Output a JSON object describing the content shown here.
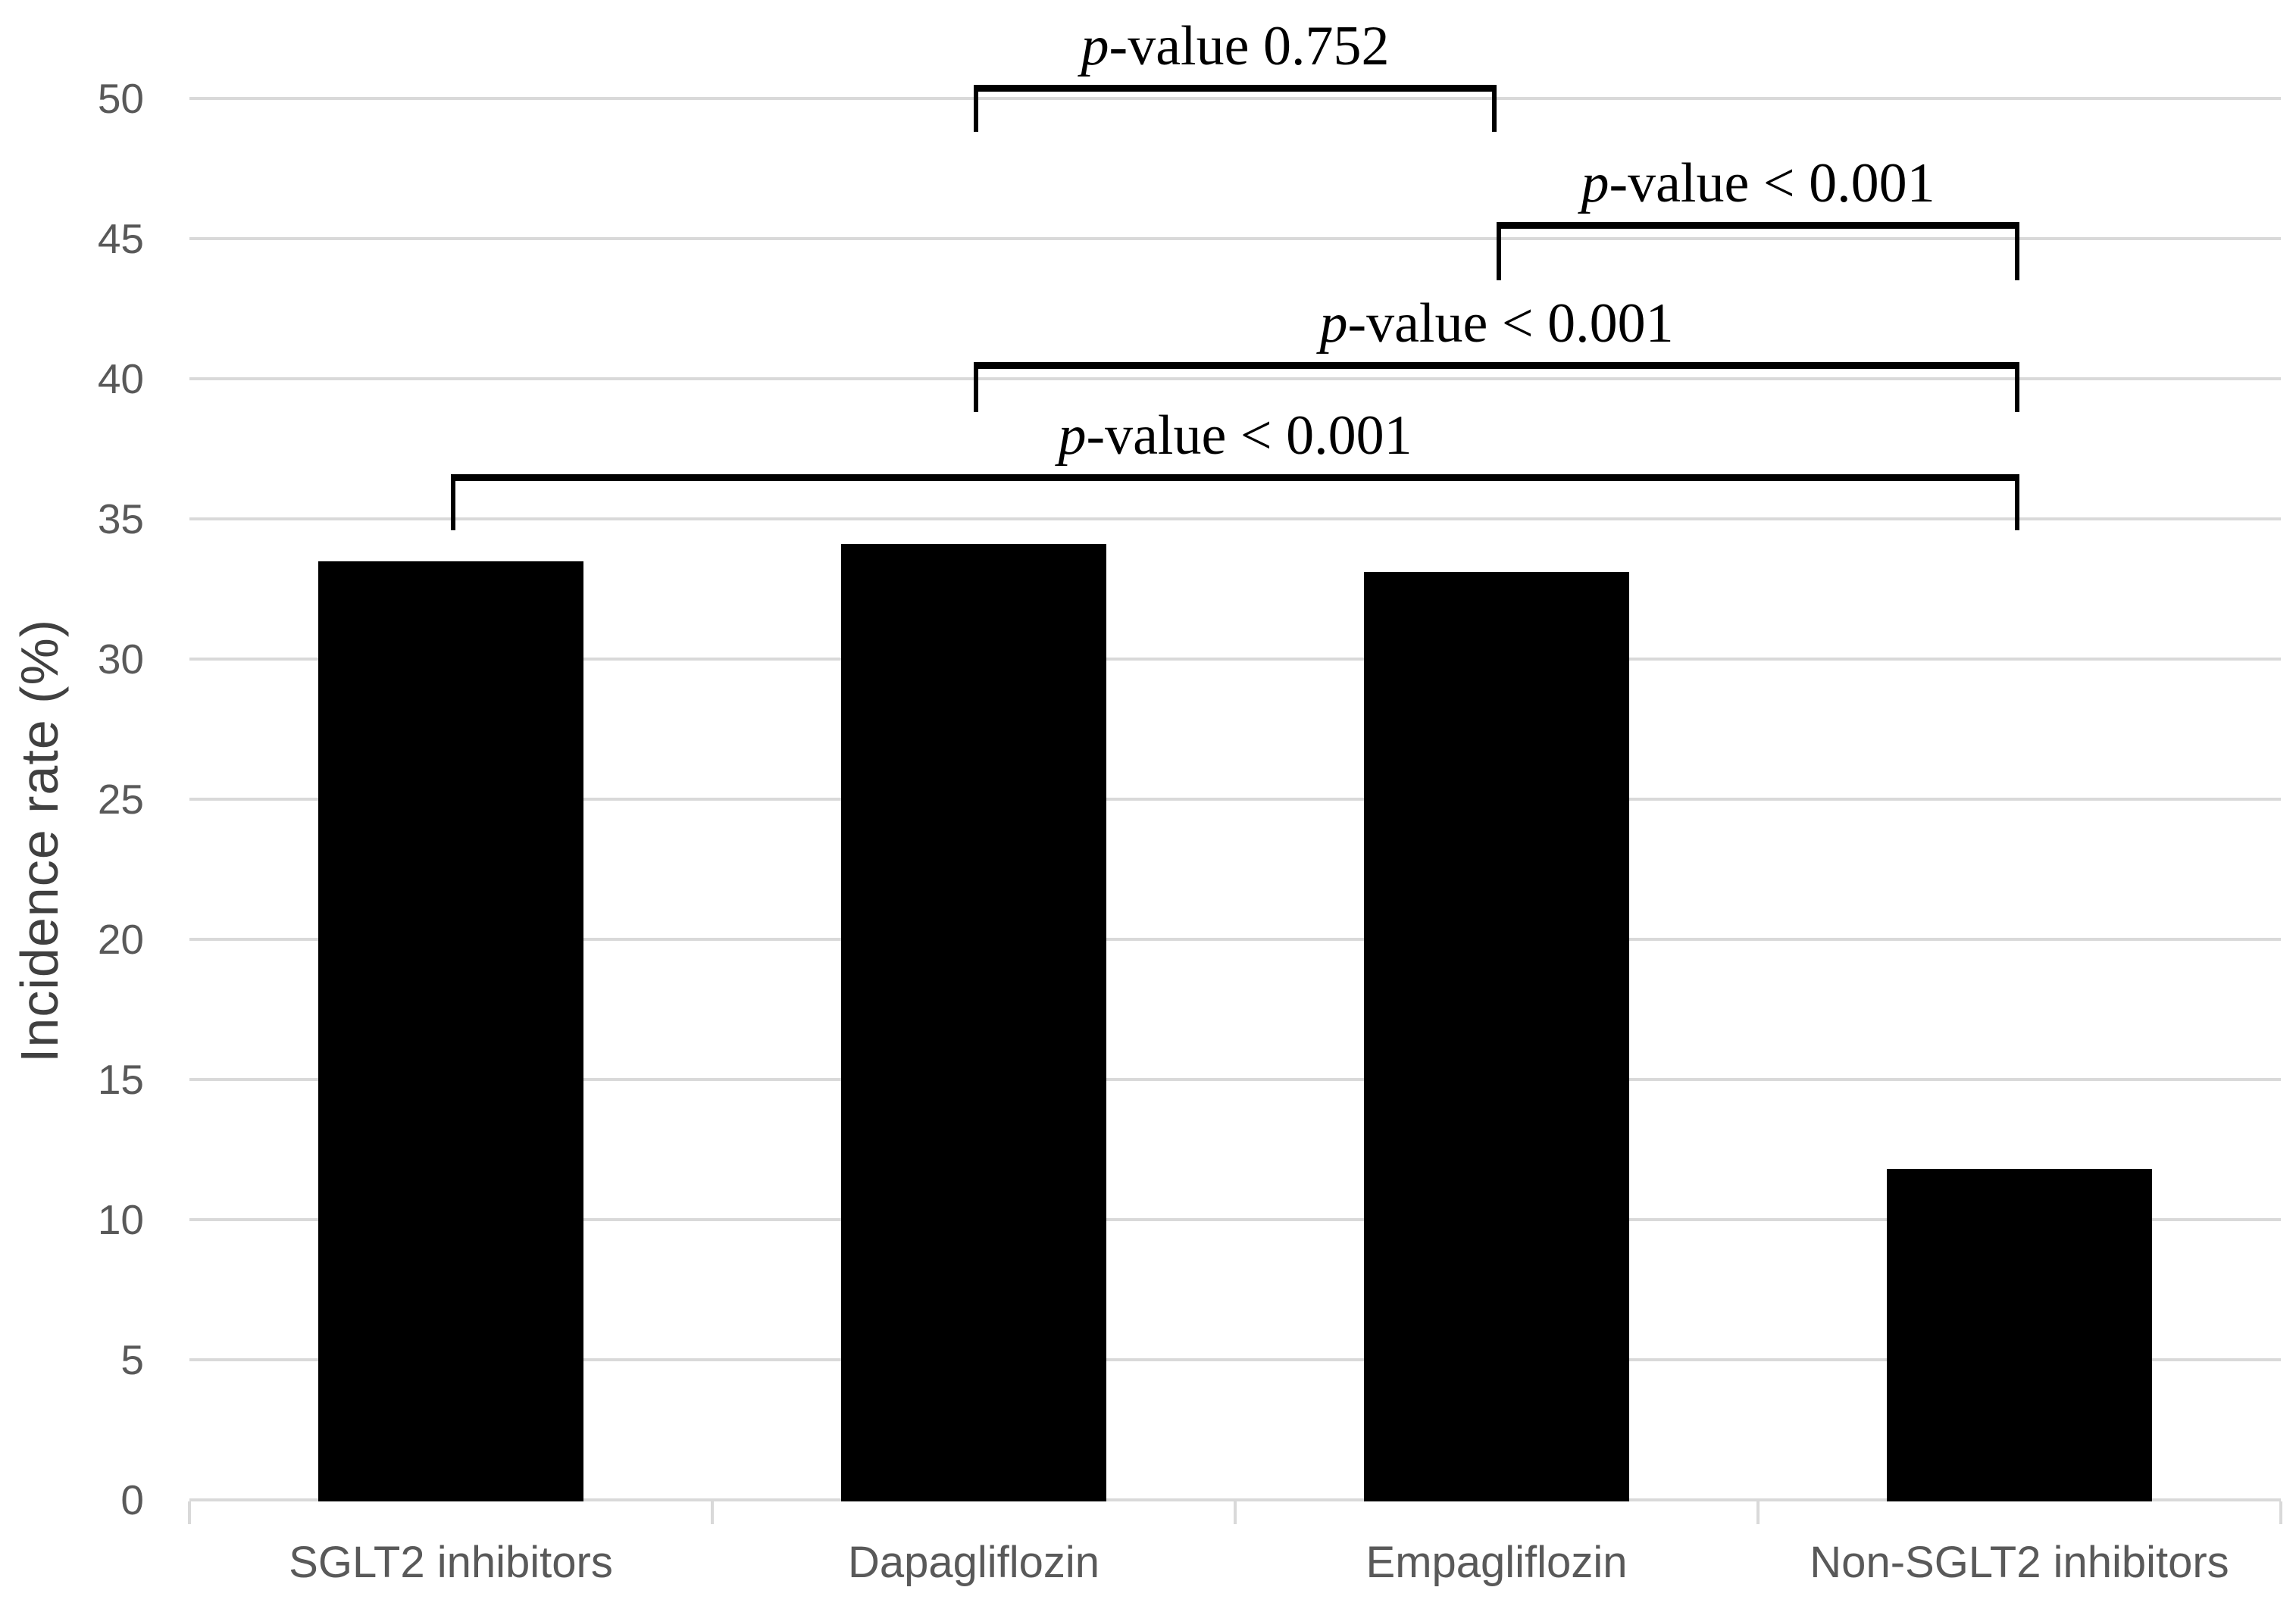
{
  "chart_data": {
    "type": "bar",
    "title": "",
    "xlabel": "",
    "ylabel": "Incidence rate (%)",
    "ylim": [
      0,
      50
    ],
    "ytick_step": 5,
    "yticks": [
      0,
      5,
      10,
      15,
      20,
      25,
      30,
      35,
      40,
      45,
      50
    ],
    "grid": true,
    "legend": "none",
    "categories": [
      "SGLT2 inhibitors",
      "Dapagliflozin",
      "Empagliflozin",
      "Non-SGLT2 inhibitors"
    ],
    "values": [
      33.5,
      34.1,
      33.1,
      11.8
    ],
    "bar_color": "#000000",
    "annotations": [
      {
        "between": [
          "Dapagliflozin",
          "Empagliflozin"
        ],
        "label": "p-value 0.752",
        "line_y": 50.5,
        "tip_y": 48.8
      },
      {
        "between": [
          "Empagliflozin",
          "Non-SGLT2 inhibitors"
        ],
        "label": "p-value < 0.001",
        "line_y": 45.6,
        "tip_y": 43.5
      },
      {
        "between": [
          "Dapagliflozin",
          "Non-SGLT2 inhibitors"
        ],
        "label": "p-value < 0.001",
        "line_y": 40.6,
        "tip_y": 38.8
      },
      {
        "between": [
          "SGLT2 inhibitors",
          "Non-SGLT2 inhibitors"
        ],
        "label": "p-value < 0.001",
        "line_y": 36.6,
        "tip_y": 34.6
      }
    ],
    "colors": {
      "background": "#ffffff",
      "bar": "#000000",
      "grid": "#d9d9d9",
      "axis_line": "#d9d9d9",
      "tick_label": "#595959",
      "category_label": "#595959",
      "axis_title": "#404040",
      "annotation": "#000000"
    }
  }
}
